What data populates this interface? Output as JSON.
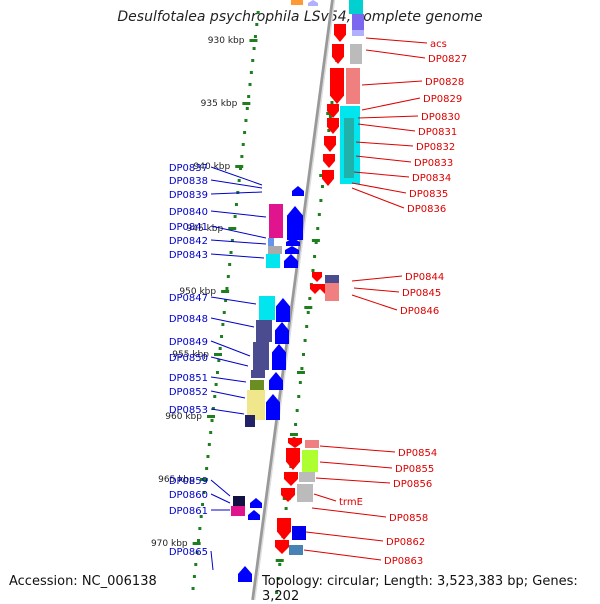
{
  "title": "Desulfotalea psychrophila LSv54, complete genome",
  "footer": {
    "accession": "Accession: NC_006138",
    "topology": "Topology: circular; Length: 3,523,383 bp; Genes: 3,202"
  },
  "colors": {
    "left_label": "#0000cc",
    "right_label": "#dd0000",
    "forward_arrow": "#0000ff",
    "reverse_arrow": "#ff0000",
    "backbone": "#999999",
    "ruler_tick": "#1f7f1f"
  },
  "ruler_labels": [
    "930 kbp",
    "935 kbp",
    "940 kbp",
    "945 kbp",
    "950 kbp",
    "955 kbp",
    "960 kbp",
    "965 kbp",
    "970 kbp"
  ],
  "left_genes": [
    "DP0837",
    "DP0838",
    "DP0839",
    "DP0840",
    "DP0841",
    "DP0842",
    "DP0843",
    "DP0847",
    "DP0848",
    "DP0849",
    "DP0850",
    "DP0851",
    "DP0852",
    "DP0853",
    "DP0859",
    "DP0860",
    "DP0861",
    "DP0865"
  ],
  "right_genes": [
    "acs",
    "DP0827",
    "DP0828",
    "DP0829",
    "DP0830",
    "DP0831",
    "DP0832",
    "DP0833",
    "DP0834",
    "DP0835",
    "DP0836",
    "DP0844",
    "DP0845",
    "DP0846",
    "DP0854",
    "DP0855",
    "DP0856",
    "trmE",
    "DP0858",
    "DP0862",
    "DP0863"
  ]
}
